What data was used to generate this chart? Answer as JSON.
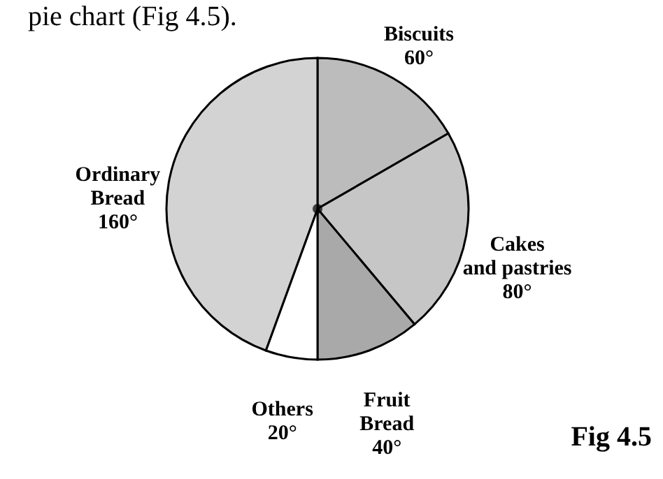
{
  "chart_data": {
    "type": "pie",
    "categories": [
      "Biscuits",
      "Cakes and pastries",
      "Fruit Bread",
      "Others",
      "Ordinary Bread"
    ],
    "values": [
      60,
      80,
      40,
      20,
      160
    ],
    "value_labels": [
      "60°",
      "80°",
      "40°",
      "20°",
      "160°"
    ],
    "colors": [
      "#bcbcbc",
      "#c6c6c6",
      "#a9a9a9",
      "#ffffff",
      "#d3d3d3"
    ],
    "annotations": [
      "pie chart (Fig 4.5).",
      "Fig 4.5"
    ]
  }
}
